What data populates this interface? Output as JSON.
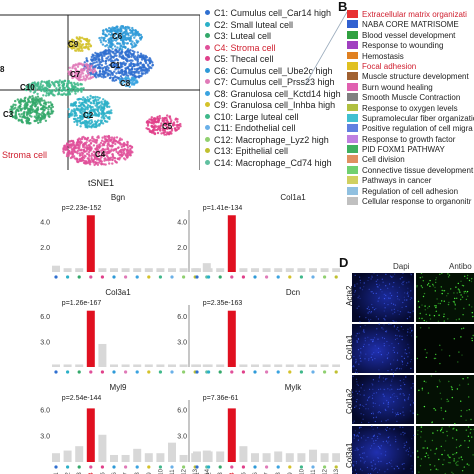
{
  "panel_letters": {
    "b": "B",
    "d": "D"
  },
  "tsne": {
    "xlabel": "tSNE1",
    "stroma_label": "Stroma cell",
    "clusters": [
      {
        "label": "C6",
        "color": "#2e9ad8"
      },
      {
        "label": "C9",
        "color": "#d4c22a"
      },
      {
        "label": "C1",
        "color": "#2f6fd0"
      },
      {
        "label": "C8",
        "color": "#3aa3e0"
      },
      {
        "label": "C7",
        "color": "#e07ab8"
      },
      {
        "label": "C10",
        "color": "#3fb88a"
      },
      {
        "label": "C3",
        "color": "#33a86a"
      },
      {
        "label": "C2",
        "color": "#2bb0c8"
      },
      {
        "label": "C5",
        "color": "#e0408a"
      },
      {
        "label": "C4",
        "color": "#e0509a"
      }
    ],
    "edge_label": "8"
  },
  "legend": [
    {
      "text": "C1: Cumulus cell_Car14 high",
      "color": "#2f6fd0"
    },
    {
      "text": "C2: Small luteal cell",
      "color": "#2bb0c8"
    },
    {
      "text": "C3: Luteal cell",
      "color": "#33a86a"
    },
    {
      "text": "C4: Stroma cell",
      "color": "#e0509a",
      "highlight": true
    },
    {
      "text": "C5: Thecal cell",
      "color": "#e0408a"
    },
    {
      "text": "C6: Cumulus cell_Ube2c high",
      "color": "#2e9ad8"
    },
    {
      "text": "C7: Cumulus cell_Prss23 high",
      "color": "#e07ab8"
    },
    {
      "text": "C8: Granulosa cell_Kctd14 high",
      "color": "#3aa3e0"
    },
    {
      "text": "C9: Granulosa cell_Inhba high",
      "color": "#d4c22a"
    },
    {
      "text": "C10: Large luteal cell",
      "color": "#3fb88a"
    },
    {
      "text": "C11: Endothelial cell",
      "color": "#6ab0e8"
    },
    {
      "text": "C12: Macrophage_Lyz2 high",
      "color": "#90d070"
    },
    {
      "text": "C13: Epithelial cell",
      "color": "#c0c030"
    },
    {
      "text": "C14: Macrophage_Cd74 high",
      "color": "#60c0a0"
    }
  ],
  "pathways": [
    {
      "text": "Extracellular matrix organizati",
      "color": "#e83030",
      "highlight": true
    },
    {
      "text": "NABA CORE MATRISOME",
      "color": "#3060d0"
    },
    {
      "text": "Blood vessel development",
      "color": "#30a040"
    },
    {
      "text": "Response to wounding",
      "color": "#a040c0"
    },
    {
      "text": "Hemostasis",
      "color": "#e08020"
    },
    {
      "text": "Focal adhesion",
      "color": "#e0c020",
      "highlight": true
    },
    {
      "text": "Muscle structure development",
      "color": "#a06030"
    },
    {
      "text": "Burn wound healing",
      "color": "#e060b0"
    },
    {
      "text": "Smooth Muscle Contraction",
      "color": "#808080"
    },
    {
      "text": "Response to oxygen levels",
      "color": "#b0c040"
    },
    {
      "text": "Supramolecular fiber organizatio",
      "color": "#40c0d0"
    },
    {
      "text": "Positive regulation of cell migra",
      "color": "#6080e0"
    },
    {
      "text": "Response to growth factor",
      "color": "#c080e0"
    },
    {
      "text": "PID FOXM1 PATHWAY",
      "color": "#40b060"
    },
    {
      "text": "Cell division",
      "color": "#e09060"
    },
    {
      "text": "Connective tissue development",
      "color": "#70d070"
    },
    {
      "text": "Pathways in cancer",
      "color": "#d0d060"
    },
    {
      "text": "Regulation of cell adhesion",
      "color": "#90c0e0"
    },
    {
      "text": "Cellular response to organonitr",
      "color": "#c0c0c0"
    }
  ],
  "chart_data": [
    {
      "type": "bar",
      "title": "Bgn",
      "annotation": "p=2.23e-152",
      "categories": [
        "C1",
        "C2",
        "C3",
        "C4",
        "C5",
        "C6",
        "C7",
        "C8",
        "C9",
        "C10",
        "C11",
        "C12",
        "C13",
        "C14"
      ],
      "values": [
        0.5,
        0.3,
        0.3,
        4.5,
        0.3,
        0.3,
        0.3,
        0.3,
        0.3,
        0.3,
        0.3,
        0.3,
        0.3,
        0.7
      ],
      "ticks": [
        "4.0",
        "2.0"
      ],
      "ylim": [
        0,
        4.6
      ]
    },
    {
      "type": "bar",
      "title": "Col1a1",
      "annotation": "p=1.41e-134",
      "categories": [
        "C1",
        "C2",
        "C3",
        "C4",
        "C5",
        "C6",
        "C7",
        "C8",
        "C9",
        "C10",
        "C11",
        "C12",
        "C13",
        "C14"
      ],
      "values": [
        0.3,
        0.3,
        0.3,
        4.5,
        0.3,
        0.3,
        0.3,
        0.3,
        0.3,
        0.3,
        0.3,
        0.3,
        0.3,
        0.7
      ],
      "ticks": [
        "4.0",
        "2.0"
      ],
      "ylim": [
        0,
        4.6
      ]
    },
    {
      "type": "bar",
      "title": "Col3a1",
      "annotation": "p=1.26e-167",
      "categories": [
        "C1",
        "C2",
        "C3",
        "C4",
        "C5",
        "C6",
        "C7",
        "C8",
        "C9",
        "C10",
        "C11",
        "C12",
        "C13",
        "C14"
      ],
      "values": [
        0.3,
        0.3,
        0.3,
        6.6,
        2.7,
        0.3,
        0.3,
        0.3,
        0.3,
        0.3,
        0.3,
        0.3,
        0.3,
        0.3
      ],
      "ticks": [
        "6.0",
        "3.0"
      ],
      "ylim": [
        0,
        6.8
      ]
    },
    {
      "type": "bar",
      "title": "Dcn",
      "annotation": "p=2.35e-163",
      "categories": [
        "C1",
        "C2",
        "C3",
        "C4",
        "C5",
        "C6",
        "C7",
        "C8",
        "C9",
        "C10",
        "C11",
        "C12",
        "C13",
        "C14"
      ],
      "values": [
        0.3,
        0.3,
        0.3,
        6.6,
        0.3,
        0.3,
        0.3,
        0.3,
        0.3,
        0.3,
        0.3,
        0.3,
        0.3,
        0.3
      ],
      "ticks": [
        "6.0",
        "3.0"
      ],
      "ylim": [
        0,
        6.8
      ]
    },
    {
      "type": "bar",
      "title": "Myl9",
      "annotation": "p=2.54e-144",
      "categories": [
        "C1",
        "C2",
        "C3",
        "C4",
        "C5",
        "C6",
        "C7",
        "C8",
        "C9",
        "C10",
        "C11",
        "C12",
        "C13",
        "C14"
      ],
      "values": [
        1.0,
        1.3,
        1.8,
        6.1,
        3.1,
        0.8,
        0.8,
        1.5,
        1.0,
        1.0,
        2.2,
        0.8,
        1.0,
        1.3
      ],
      "ticks": [
        "6.0",
        "3.0"
      ],
      "ylim": [
        0,
        6.6
      ]
    },
    {
      "type": "bar",
      "title": "Mylk",
      "annotation": "p=7.36e-61",
      "categories": [
        "C1",
        "C2",
        "C3",
        "C4",
        "C5",
        "C6",
        "C7",
        "C8",
        "C9",
        "C10",
        "C11",
        "C12",
        "C13",
        "C14"
      ],
      "values": [
        1.2,
        1.2,
        1.2,
        6.1,
        1.8,
        1.0,
        1.0,
        1.2,
        1.0,
        1.0,
        1.4,
        1.0,
        1.0,
        1.2
      ],
      "ticks": [
        "6.0",
        "3.0"
      ],
      "ylim": [
        0,
        6.6
      ]
    }
  ],
  "panelD": {
    "columns": [
      "Dapi",
      "Antibo"
    ],
    "rows": [
      "Acta2",
      "Col1a1",
      "Col1a2",
      "Col3a1"
    ]
  }
}
